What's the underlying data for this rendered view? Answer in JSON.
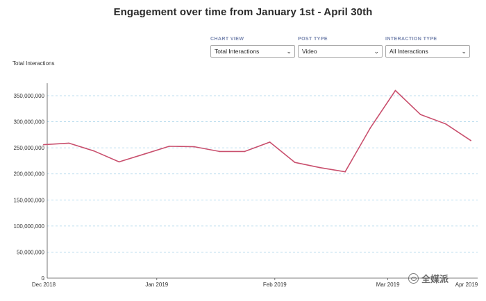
{
  "chart_data": {
    "type": "line",
    "title": "Engagement over time from January 1st - April 30th",
    "ylabel": "Total Interactions",
    "xlabel": "",
    "ylim": [
      0,
      350000000
    ],
    "y_ticks": [
      0,
      50000000,
      100000000,
      150000000,
      200000000,
      250000000,
      300000000,
      350000000
    ],
    "y_tick_labels": [
      "0",
      "50,000,000",
      "100,000,000",
      "150,000,000",
      "200,000,000",
      "250,000,000",
      "300,000,000",
      "350,000,000"
    ],
    "x_ticks": [
      {
        "label": "Dec 2018",
        "index": 0
      },
      {
        "label": "Jan 2019",
        "index": 4.5
      },
      {
        "label": "Feb 2019",
        "index": 9.2
      },
      {
        "label": "Mar 2019",
        "index": 13.7
      },
      {
        "label": "Apr 2019",
        "index": 18.1
      }
    ],
    "grid": true,
    "grid_style": "dashed-horizontal",
    "series": [
      {
        "name": "Total Interactions",
        "color": "#c9506e",
        "values": [
          256000000,
          259000000,
          244000000,
          223000000,
          238000000,
          253000000,
          252000000,
          243000000,
          243000000,
          261000000,
          222000000,
          212000000,
          204000000,
          288000000,
          360000000,
          314000000,
          296000000,
          264000000
        ]
      }
    ]
  },
  "filters": [
    {
      "label": "CHART VIEW",
      "value": "Total Interactions"
    },
    {
      "label": "POST TYPE",
      "value": "Video"
    },
    {
      "label": "INTERACTION TYPE",
      "value": "All Interactions"
    }
  ],
  "watermark": {
    "text": "全媒派"
  },
  "colors": {
    "line": "#c9506e",
    "grid": "#a9d4ea",
    "axis": "#555555",
    "filter_label": "#7a88b0"
  }
}
